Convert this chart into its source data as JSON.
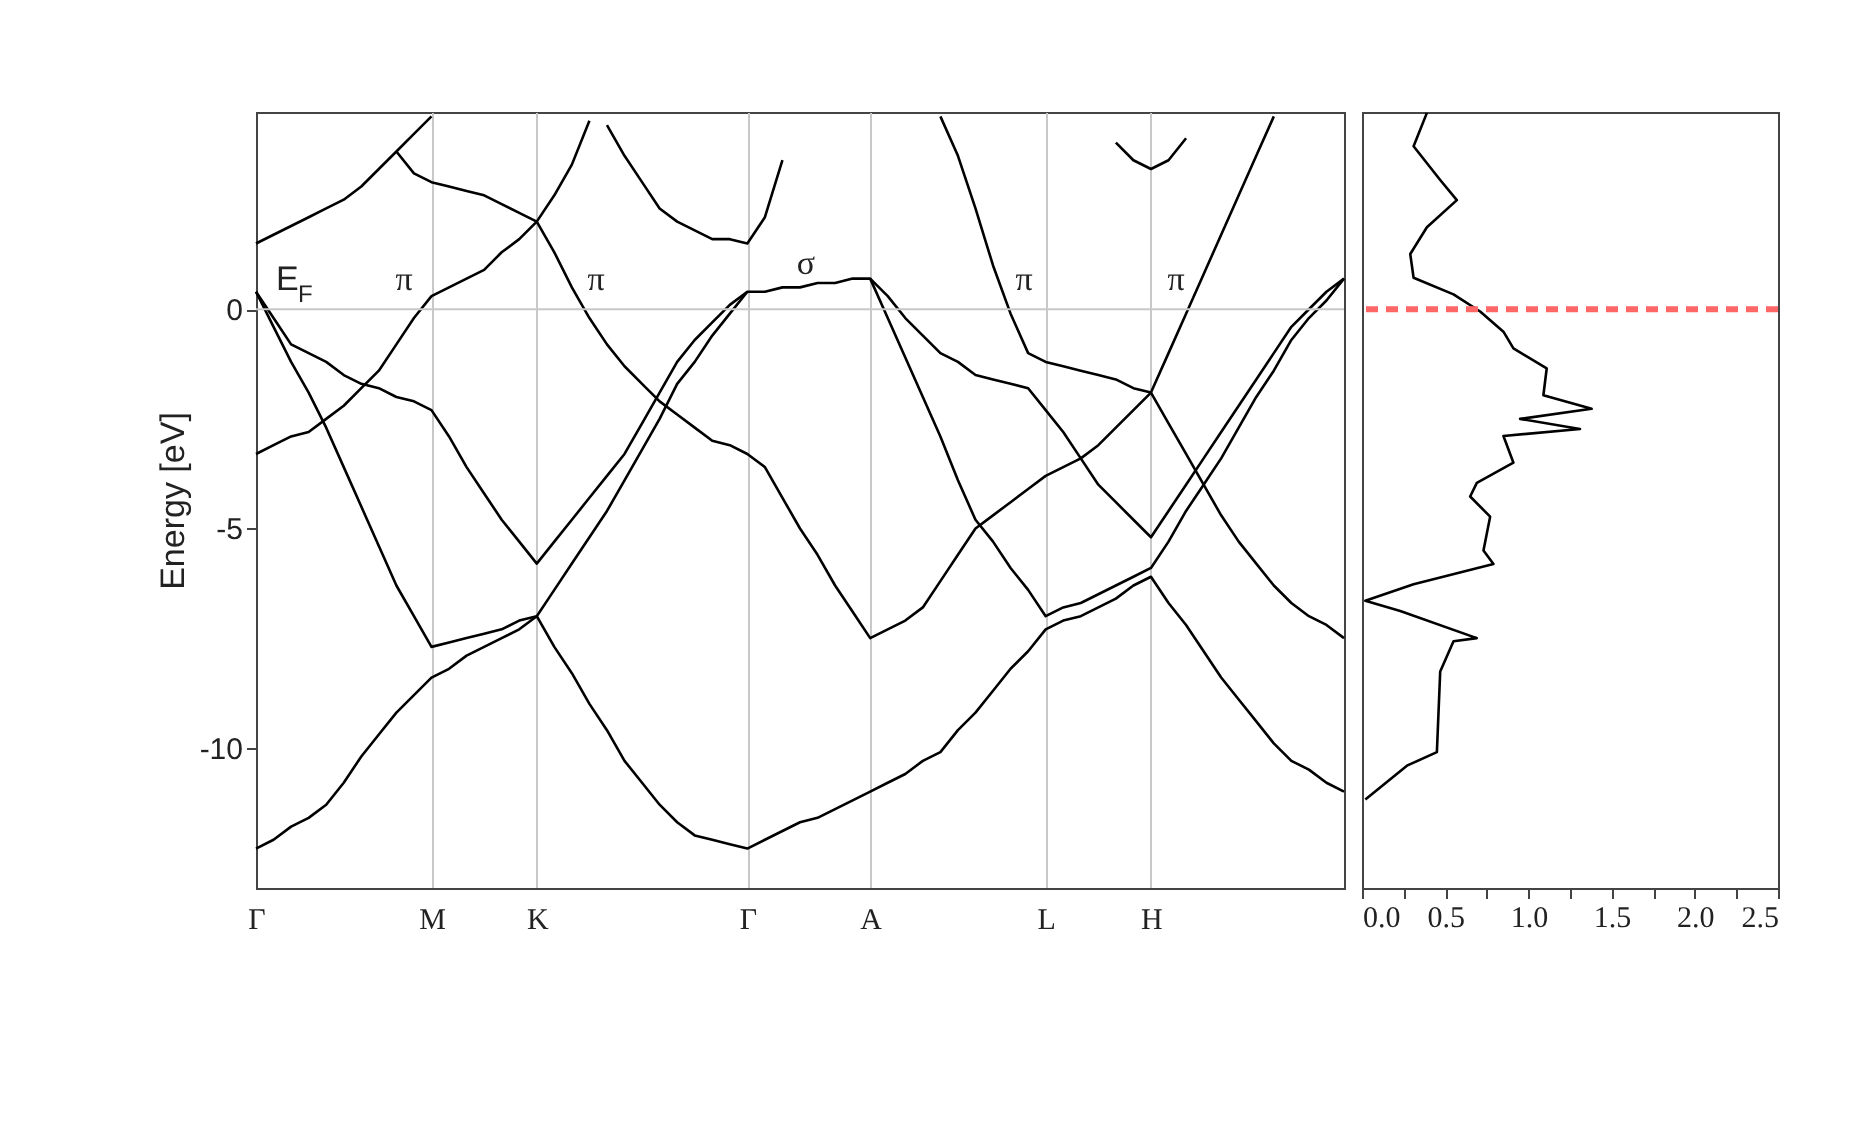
{
  "chart_data": [
    {
      "type": "line",
      "ylabel": "Energy [eV]",
      "categories": [
        "Γ",
        null,
        null,
        null,
        null,
        null,
        null,
        null,
        null,
        null,
        "M",
        null,
        null,
        null,
        null,
        null,
        "K",
        null,
        null,
        null,
        null,
        null,
        null,
        null,
        null,
        null,
        null,
        null,
        "Γ",
        null,
        null,
        null,
        null,
        null,
        null,
        "A",
        null,
        null,
        null,
        null,
        null,
        null,
        null,
        null,
        null,
        "L",
        null,
        null,
        null,
        null,
        null,
        "H",
        null,
        null,
        null,
        null,
        null,
        null,
        null,
        null,
        null,
        null,
        null
      ],
      "ylim": [
        -13.2,
        4.5
      ],
      "yticks": [
        -10,
        -5,
        0
      ],
      "grid": "x",
      "ref_lines": [
        {
          "axis": "y",
          "value": 0,
          "color": "#c8c8c8"
        }
      ],
      "annotations": [
        "E$_{F}$",
        "π",
        "π",
        "σ",
        "π",
        "π"
      ],
      "series": [
        {
          "color": "#000000",
          "values": [
            -12.3,
            -12.1,
            -11.8,
            -11.6,
            -11.3,
            -10.8,
            -10.2,
            -9.7,
            -9.2,
            -8.8,
            -8.4,
            -8.2,
            -7.9,
            -7.7,
            -7.5,
            -7.3,
            -7.0,
            -6.4,
            -5.8,
            -5.2,
            -4.6,
            -3.9,
            -3.2,
            -2.5,
            -1.7,
            -1.2,
            -0.6,
            -0.1,
            0.4,
            null,
            null,
            null,
            null,
            null,
            null,
            null,
            null,
            null,
            null,
            null,
            null,
            null,
            null,
            null,
            null,
            null,
            null,
            null,
            null,
            null,
            null,
            null,
            null,
            null,
            null,
            null,
            null,
            null,
            null,
            null,
            null,
            null,
            null
          ]
        },
        {
          "color": "#000000",
          "values": [
            0.4,
            -0.4,
            -1.2,
            -1.9,
            -2.7,
            -3.6,
            -4.5,
            -5.4,
            -6.3,
            -7.0,
            -7.7,
            -7.6,
            -7.5,
            -7.4,
            -7.3,
            -7.1,
            -7.0,
            -7.7,
            -8.3,
            -9.0,
            -9.6,
            -10.3,
            -10.8,
            -11.3,
            -11.7,
            -12.0,
            -12.1,
            -12.2,
            -12.3,
            -12.1,
            -11.9,
            -11.7,
            -11.6,
            -11.4,
            -11.2,
            -11.0,
            -10.8,
            -10.6,
            -10.3,
            -10.1,
            -9.6,
            -9.2,
            -8.7,
            -8.2,
            -7.8,
            -7.3,
            -7.1,
            -7.0,
            -6.8,
            -6.6,
            -6.3,
            -6.1,
            -6.7,
            -7.2,
            -7.8,
            -8.4,
            -8.9,
            -9.4,
            -9.9,
            -10.3,
            -10.5,
            -10.8,
            -11.0
          ]
        },
        {
          "color": "#000000",
          "values": [
            0.4,
            -0.2,
            -0.8,
            -1.0,
            -1.2,
            -1.5,
            -1.7,
            -1.8,
            -2.0,
            -2.1,
            -2.3,
            -2.9,
            -3.6,
            -4.2,
            -4.8,
            -5.3,
            -5.8,
            -5.3,
            -4.8,
            -4.3,
            -3.8,
            -3.3,
            -2.6,
            -1.9,
            -1.2,
            -0.7,
            -0.3,
            0.1,
            0.4,
            0.4,
            0.5,
            0.5,
            0.6,
            0.6,
            0.7,
            0.7,
            0.3,
            -0.2,
            -0.6,
            -1.0,
            -1.2,
            -1.5,
            -1.6,
            -1.7,
            -1.8,
            -2.3,
            -2.8,
            -3.4,
            -4.0,
            -4.4,
            -4.8,
            -5.2,
            -4.6,
            -4.0,
            -3.4,
            -2.8,
            -2.2,
            -1.6,
            -1.0,
            -0.4,
            0.0,
            0.4,
            0.7
          ]
        },
        {
          "color": "#000000",
          "values": [
            -3.3,
            -3.1,
            -2.9,
            -2.8,
            -2.5,
            -2.2,
            -1.8,
            -1.4,
            -0.8,
            -0.2,
            0.3,
            0.5,
            0.7,
            0.9,
            1.3,
            1.6,
            2.0,
            2.6,
            3.3,
            4.3,
            null,
            null,
            null,
            null,
            null,
            null,
            null,
            null,
            null,
            null,
            null,
            null,
            null,
            null,
            null,
            null,
            null,
            null,
            null,
            null,
            null,
            null,
            null,
            null,
            null,
            null,
            null,
            null,
            null,
            null,
            null,
            null,
            null,
            null,
            null,
            null,
            null,
            null,
            null,
            null,
            null,
            null,
            null
          ]
        },
        {
          "color": "#000000",
          "values": [
            null,
            null,
            null,
            null,
            null,
            null,
            null,
            null,
            3.6,
            3.1,
            2.9,
            2.8,
            2.7,
            2.6,
            2.4,
            2.2,
            2.0,
            1.3,
            0.5,
            -0.2,
            -0.8,
            -1.3,
            -1.7,
            -2.1,
            -2.4,
            -2.7,
            -3.0,
            -3.1,
            -3.3,
            -3.6,
            -4.3,
            -5.0,
            -5.6,
            -6.3,
            -6.9,
            -7.5,
            -7.3,
            -7.1,
            -6.8,
            -6.2,
            -5.6,
            -5.0,
            -4.7,
            -4.4,
            -4.1,
            -3.8,
            -3.6,
            -3.4,
            -3.1,
            -2.7,
            -2.3,
            -1.9,
            -1.0,
            -0.1,
            0.8,
            1.7,
            2.6,
            3.5,
            4.4,
            null,
            null,
            null,
            null
          ]
        },
        {
          "color": "#000000",
          "values": [
            1.5,
            1.7,
            1.9,
            2.1,
            2.3,
            2.5,
            2.8,
            3.2,
            3.6,
            4.0,
            4.4,
            null,
            null,
            null,
            null,
            null,
            null,
            null,
            null,
            null,
            null,
            null,
            null,
            null,
            null,
            null,
            null,
            null,
            null,
            null,
            null,
            null,
            null,
            null,
            null,
            null,
            null,
            null,
            null,
            null,
            null,
            null,
            null,
            null,
            null,
            null,
            null,
            null,
            null,
            null,
            null,
            null,
            null,
            null,
            null,
            null,
            null,
            null,
            null,
            null,
            null,
            null,
            null
          ]
        },
        {
          "color": "#000000",
          "values": [
            null,
            null,
            null,
            null,
            null,
            null,
            null,
            null,
            null,
            null,
            null,
            null,
            null,
            null,
            null,
            null,
            null,
            null,
            null,
            null,
            4.2,
            3.5,
            2.9,
            2.3,
            2.0,
            1.8,
            1.6,
            1.6,
            1.5,
            2.1,
            3.4,
            null,
            null,
            null,
            null,
            null,
            null,
            null,
            null,
            null,
            null,
            null,
            null,
            null,
            null,
            null,
            null,
            null,
            null,
            null,
            null,
            null,
            null,
            null,
            null,
            null,
            null,
            null,
            null,
            null,
            null,
            null,
            null
          ]
        },
        {
          "color": "#000000",
          "values": [
            null,
            null,
            null,
            null,
            null,
            null,
            null,
            null,
            null,
            null,
            null,
            null,
            null,
            null,
            null,
            null,
            null,
            null,
            null,
            null,
            null,
            null,
            null,
            null,
            null,
            null,
            null,
            null,
            null,
            null,
            null,
            null,
            null,
            null,
            null,
            0.7,
            -0.2,
            -1.1,
            -2.0,
            -2.9,
            -3.9,
            -4.8,
            -5.3,
            -5.9,
            -6.4,
            -7.0,
            -6.8,
            -6.7,
            -6.5,
            -6.3,
            -6.1,
            -5.9,
            -5.3,
            -4.6,
            -4.0,
            -3.4,
            -2.7,
            -2.0,
            -1.4,
            -0.7,
            -0.2,
            0.2,
            0.7
          ]
        },
        {
          "color": "#000000",
          "values": [
            null,
            null,
            null,
            null,
            null,
            null,
            null,
            null,
            null,
            null,
            null,
            null,
            null,
            null,
            null,
            null,
            null,
            null,
            null,
            null,
            null,
            null,
            null,
            null,
            null,
            null,
            null,
            null,
            null,
            null,
            null,
            null,
            null,
            null,
            null,
            null,
            null,
            null,
            null,
            4.4,
            3.5,
            2.3,
            1.0,
            -0.1,
            -1.0,
            -1.2,
            -1.3,
            -1.4,
            -1.5,
            -1.6,
            -1.8,
            -1.9,
            -2.6,
            -3.3,
            -4.0,
            -4.7,
            -5.3,
            -5.8,
            -6.3,
            -6.7,
            -7.0,
            -7.2,
            -7.5
          ]
        },
        {
          "color": "#000000",
          "values": [
            null,
            null,
            null,
            null,
            null,
            null,
            null,
            null,
            null,
            null,
            null,
            null,
            null,
            null,
            null,
            null,
            null,
            null,
            null,
            null,
            null,
            null,
            null,
            null,
            null,
            null,
            null,
            null,
            null,
            null,
            null,
            null,
            null,
            null,
            null,
            null,
            null,
            null,
            null,
            null,
            null,
            null,
            null,
            null,
            null,
            null,
            null,
            null,
            null,
            3.8,
            3.4,
            3.2,
            3.4,
            3.9,
            null,
            null,
            null,
            null,
            null,
            null,
            null,
            null,
            null
          ]
        }
      ]
    },
    {
      "type": "line",
      "tick_labels": "x",
      "xlim": [
        0,
        2.5
      ],
      "xticks": [
        {
          "value": 0,
          "label": "0.0"
        },
        {
          "value": 0.25,
          "label": null
        },
        {
          "value": 0.5,
          "label": "0.5"
        },
        {
          "value": 0.75,
          "label": null
        },
        {
          "value": 1,
          "label": "1.0"
        },
        {
          "value": 1.25,
          "label": null
        },
        {
          "value": 1.5,
          "label": "1.5"
        },
        {
          "value": 1.75,
          "label": null
        },
        {
          "value": 2,
          "label": "2.0"
        },
        {
          "value": 2.25,
          "label": null
        },
        {
          "value": 2.5,
          "label": "2.5"
        }
      ],
      "ylim": [
        -13.2,
        4.5
      ],
      "ref_lines": [
        {
          "axis": "y",
          "value": 0,
          "color": "#ff6666",
          "line_style": "dashed"
        }
      ],
      "series": [
        {
          "color": "#000000",
          "x": [
            0.39,
            0.31,
            0.47,
            0.57,
            0.39,
            0.29,
            0.31,
            0.55,
            0.71,
            0.85,
            0.91,
            1.11,
            1.09,
            1.38,
            0.95,
            1.31,
            0.85,
            0.91,
            0.69,
            0.65,
            0.77,
            0.73,
            0.79,
            0.31,
            0.02,
            0.23,
            0.69,
            0.55,
            0.47,
            0.45,
            0.27,
            0.02
          ],
          "values": [
            4.48,
            3.72,
            2.95,
            2.49,
            1.87,
            1.26,
            0.72,
            0.34,
            -0.05,
            -0.51,
            -0.89,
            -1.35,
            -1.96,
            -2.27,
            -2.5,
            -2.73,
            -2.89,
            -3.5,
            -3.96,
            -4.27,
            -4.73,
            -5.5,
            -5.81,
            -6.27,
            -6.65,
            -6.88,
            -7.5,
            -7.57,
            -8.26,
            -10.1,
            -10.41,
            -11.18
          ]
        }
      ]
    }
  ]
}
